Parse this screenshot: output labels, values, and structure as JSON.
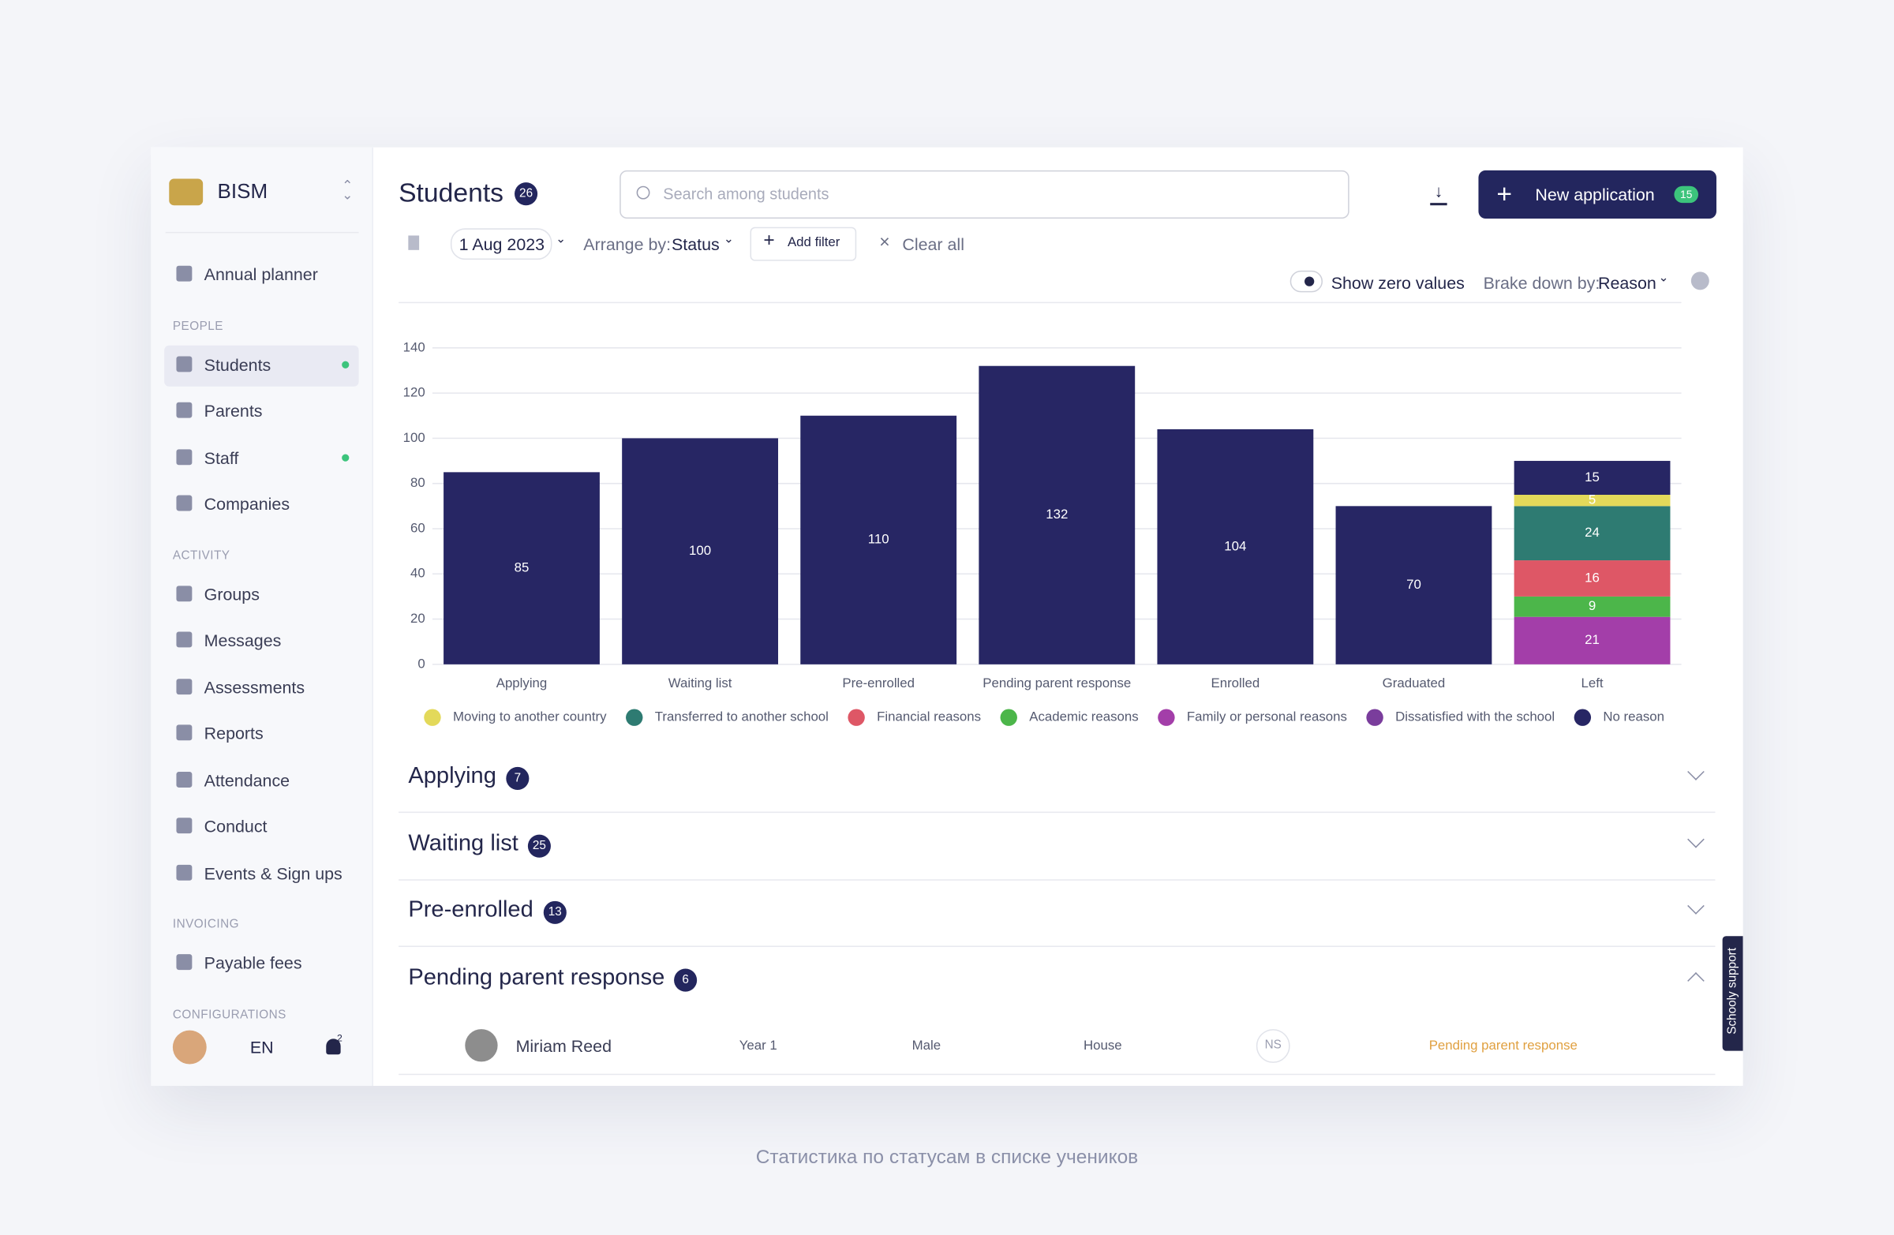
{
  "sidebar": {
    "org": "BISM",
    "entries": [
      {
        "label": "Annual planner"
      },
      {
        "heading": "PEOPLE"
      },
      {
        "label": "Students"
      },
      {
        "label": "Parents"
      },
      {
        "label": "Staff"
      },
      {
        "label": "Companies"
      },
      {
        "heading": "ACTIVITY"
      },
      {
        "label": "Groups"
      },
      {
        "label": "Messages"
      },
      {
        "label": "Assessments"
      },
      {
        "label": "Reports"
      },
      {
        "label": "Attendance"
      },
      {
        "label": "Conduct"
      },
      {
        "label": "Events & Sign ups"
      },
      {
        "heading": "INVOICING"
      },
      {
        "label": "Payable fees"
      },
      {
        "heading": "CONFIGURATIONS"
      }
    ],
    "language": "EN",
    "notifications": "2"
  },
  "header": {
    "title": "Students",
    "count": "26",
    "search_placeholder": "Search among students",
    "button": "New application",
    "button_badge": "15"
  },
  "filters": {
    "date": "1 Aug 2023",
    "arrange_label": "Arrange by:",
    "arrange_value": "Status",
    "add_filter": "Add filter",
    "clear": "Clear all",
    "toggle": "Show zero values",
    "breakdown_label": "Brake down by:",
    "breakdown_value": "Reason"
  },
  "chart_data": {
    "type": "bar",
    "stacked": true,
    "grid": true,
    "categories": [
      "Applying",
      "Waiting list",
      "Pre-enrolled",
      "Pending parent response",
      "Enrolled",
      "Graduated",
      "Left"
    ],
    "series": [
      {
        "name": "Moving to another country",
        "color": "#e3d95a",
        "values": [
          null,
          null,
          null,
          null,
          null,
          null,
          5
        ]
      },
      {
        "name": "Transferred to another school",
        "color": "#2e7b72",
        "values": [
          null,
          null,
          null,
          null,
          null,
          null,
          24
        ]
      },
      {
        "name": "Financial reasons",
        "color": "#de5766",
        "values": [
          null,
          null,
          null,
          null,
          null,
          null,
          16
        ]
      },
      {
        "name": "Academic reasons",
        "color": "#4cb64a",
        "values": [
          null,
          null,
          null,
          null,
          null,
          null,
          9
        ]
      },
      {
        "name": "Family or personal reasons",
        "color": "#a33ea9",
        "values": [
          null,
          null,
          null,
          null,
          null,
          null,
          21
        ]
      },
      {
        "name": "Dissatisfied with the school",
        "color": "#7a3d9c",
        "values": [
          null,
          null,
          null,
          null,
          null,
          null,
          null
        ]
      },
      {
        "name": "No reason",
        "color": "#272664",
        "values": [
          85,
          100,
          110,
          132,
          104,
          70,
          15
        ]
      }
    ],
    "ylim": [
      0,
      140
    ],
    "yticks": [
      0,
      20,
      40,
      60,
      80,
      100,
      120,
      140
    ]
  },
  "sections": [
    {
      "title": "Applying",
      "count": "7"
    },
    {
      "title": "Waiting list",
      "count": "25"
    },
    {
      "title": "Pre-enrolled",
      "count": "13"
    },
    {
      "title": "Pending parent response",
      "count": "6"
    }
  ],
  "row": {
    "name": "Miriam Reed",
    "year": "Year 1",
    "gender": "Male",
    "house": "House",
    "initials": "NS",
    "status": "Pending parent response"
  },
  "support": "Schooly support",
  "caption": "Статистика по статусам в списке учеников"
}
